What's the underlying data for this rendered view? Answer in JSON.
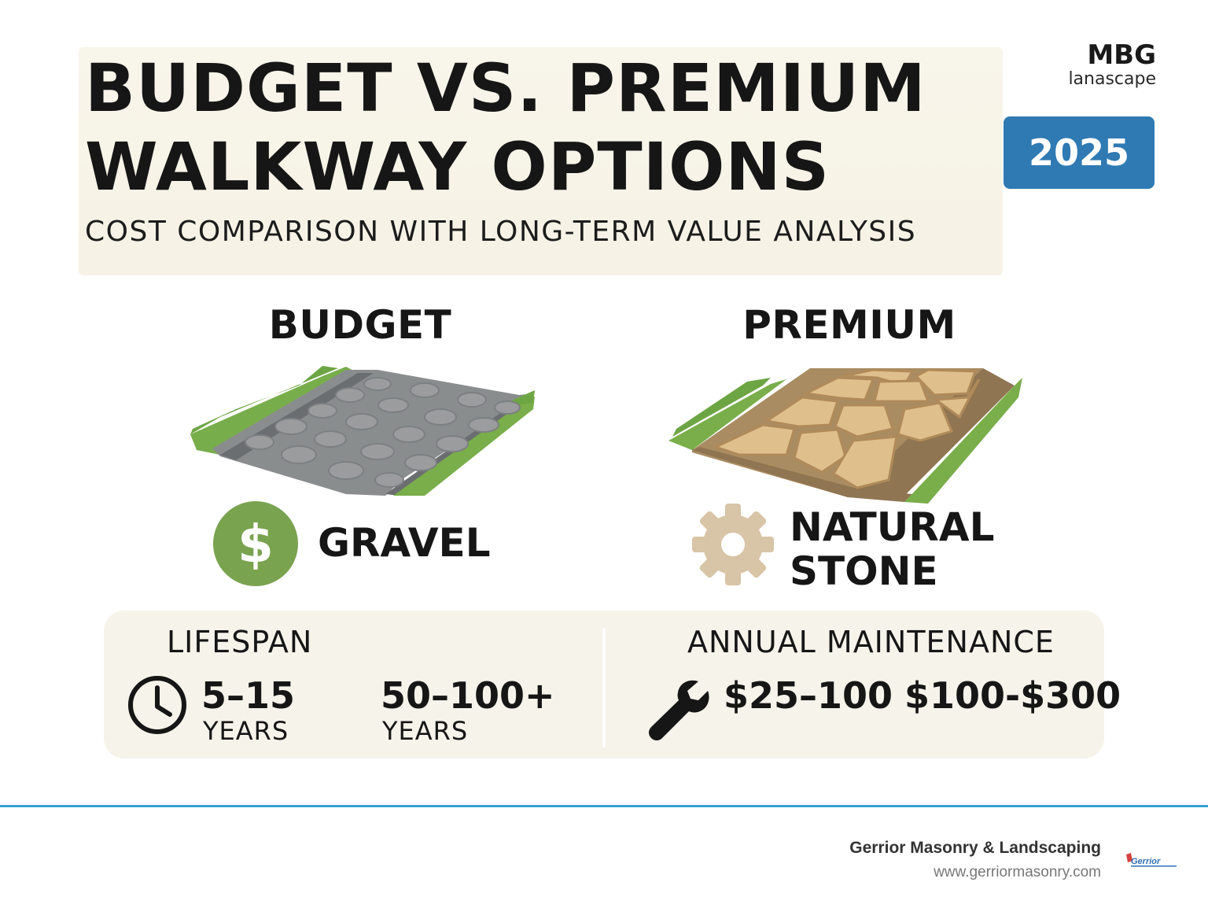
{
  "header": {
    "title_line1": "BUDGET VS. PREMIUM",
    "title_line2": "WALKWAY OPTIONS",
    "subtitle": "COST COMPARISON WITH LONG-TERM VALUE ANALYSIS",
    "brand_name": "MBG",
    "brand_tagline": "lanascape",
    "year": "2025",
    "year_badge_color": "#2f7ab2"
  },
  "columns": {
    "budget": {
      "heading": "BUDGET",
      "material": "GRAVEL",
      "icon": "dollar-icon",
      "icon_color": "#7aa34f"
    },
    "premium": {
      "heading": "PREMIUM",
      "material_line1": "NATURAL",
      "material_line2": "STONE",
      "icon": "gear-icon",
      "icon_color": "#d8c4a6"
    }
  },
  "stats": {
    "lifespan": {
      "heading": "LIFESPAN",
      "icon": "clock-icon",
      "budget_value": "5–15",
      "budget_unit": "YEARS",
      "premium_value": "50–100+",
      "premium_unit": "YEARS"
    },
    "maintenance": {
      "heading": "ANNUAL MAINTENANCE",
      "icon": "wrench-icon",
      "budget_value": "$25–100",
      "premium_value": "$100-$300"
    }
  },
  "footer": {
    "company": "Gerrior Masonry & Landscaping",
    "url": "www.gerriormasonry.com",
    "logo_text": "Gerrior",
    "accent_color": "#36a3d6"
  }
}
